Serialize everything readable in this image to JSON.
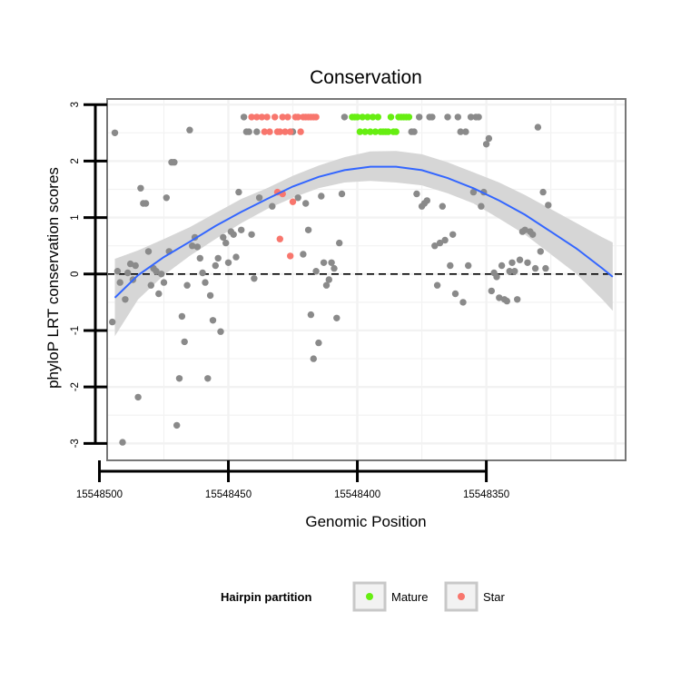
{
  "chart_data": {
    "type": "scatter",
    "title": "Conservation",
    "xlabel": "Genomic Position",
    "ylabel": "phyloP LRT conservation scores",
    "xlim": [
      15548497,
      15548296
    ],
    "ylim": [
      -3.3,
      3.1
    ],
    "x_reversed": true,
    "x_ticks": [
      15548500,
      15548450,
      15548400,
      15548350
    ],
    "x_tick_labels": [
      "15548500",
      "15548450",
      "15548400",
      "15548350"
    ],
    "y_ticks": [
      -3,
      -2,
      -1,
      0,
      1,
      2,
      3
    ],
    "y_tick_labels": [
      "-3",
      "-2",
      "-1",
      "0",
      "1",
      "2",
      "3"
    ],
    "reference_line": {
      "y": 0,
      "style": "dashed",
      "color": "#000000"
    },
    "grid": true,
    "legend": {
      "title": "Hairpin partition",
      "position": "bottom",
      "entries": [
        {
          "label": "Mature",
          "color": "#66ee11"
        },
        {
          "label": "Star",
          "color": "#f8766d"
        }
      ]
    },
    "colors": {
      "other": "#8a8a8a",
      "Mature": "#66ee11",
      "Star": "#f8766d",
      "smooth_line": "#3366ff",
      "ribbon": "#d4d4d4"
    },
    "smooth": {
      "x": [
        15548494,
        15548485,
        15548475,
        15548465,
        15548455,
        15548445,
        15548435,
        15548425,
        15548415,
        15548405,
        15548395,
        15548385,
        15548375,
        15548365,
        15548355,
        15548345,
        15548335,
        15548325,
        15548315,
        15548305,
        15548301
      ],
      "y": [
        -0.42,
        -0.02,
        0.3,
        0.57,
        0.85,
        1.1,
        1.33,
        1.55,
        1.72,
        1.84,
        1.9,
        1.9,
        1.84,
        1.7,
        1.52,
        1.3,
        1.05,
        0.75,
        0.45,
        0.1,
        -0.05
      ],
      "lower": [
        -1.1,
        -0.45,
        -0.02,
        0.32,
        0.62,
        0.9,
        1.15,
        1.35,
        1.52,
        1.62,
        1.65,
        1.62,
        1.57,
        1.43,
        1.25,
        0.98,
        0.7,
        0.35,
        0.0,
        -0.45,
        -0.65
      ],
      "upper": [
        0.27,
        0.42,
        0.62,
        0.83,
        1.08,
        1.33,
        1.52,
        1.74,
        1.92,
        2.07,
        2.17,
        2.18,
        2.12,
        1.98,
        1.8,
        1.62,
        1.4,
        1.15,
        0.9,
        0.65,
        0.56
      ]
    },
    "series": [
      {
        "name": "Other",
        "points": [
          [
            15548494,
            2.5
          ],
          [
            15548495,
            -0.85
          ],
          [
            15548493,
            0.05
          ],
          [
            15548492,
            -0.15
          ],
          [
            15548491,
            -2.98
          ],
          [
            15548490,
            -0.45
          ],
          [
            15548489,
            0.02
          ],
          [
            15548488,
            0.18
          ],
          [
            15548487,
            -0.1
          ],
          [
            15548486,
            0.15
          ],
          [
            15548485,
            -2.18
          ],
          [
            15548484,
            1.52
          ],
          [
            15548483,
            1.25
          ],
          [
            15548482,
            1.25
          ],
          [
            15548481,
            0.4
          ],
          [
            15548480,
            -0.2
          ],
          [
            15548479,
            0.1
          ],
          [
            15548478,
            0.05
          ],
          [
            15548477,
            -0.35
          ],
          [
            15548476,
            0.0
          ],
          [
            15548475,
            -0.15
          ],
          [
            15548474,
            1.35
          ],
          [
            15548473,
            0.4
          ],
          [
            15548472,
            1.98
          ],
          [
            15548471,
            1.98
          ],
          [
            15548470,
            -2.68
          ],
          [
            15548469,
            -1.85
          ],
          [
            15548468,
            -0.75
          ],
          [
            15548467,
            -1.2
          ],
          [
            15548466,
            -0.2
          ],
          [
            15548465,
            2.55
          ],
          [
            15548464,
            0.5
          ],
          [
            15548463,
            0.65
          ],
          [
            15548462,
            0.48
          ],
          [
            15548461,
            0.28
          ],
          [
            15548460,
            0.02
          ],
          [
            15548459,
            -0.15
          ],
          [
            15548458,
            -1.85
          ],
          [
            15548457,
            -0.38
          ],
          [
            15548456,
            -0.82
          ],
          [
            15548455,
            0.15
          ],
          [
            15548454,
            0.28
          ],
          [
            15548453,
            -1.02
          ],
          [
            15548452,
            0.65
          ],
          [
            15548451,
            0.55
          ],
          [
            15548450,
            0.2
          ],
          [
            15548449,
            0.75
          ],
          [
            15548448,
            0.7
          ],
          [
            15548447,
            0.3
          ],
          [
            15548446,
            1.45
          ],
          [
            15548445,
            0.78
          ],
          [
            15548444,
            2.78
          ],
          [
            15548443,
            2.52
          ],
          [
            15548442,
            2.52
          ],
          [
            15548441,
            0.7
          ],
          [
            15548440,
            -0.08
          ],
          [
            15548439,
            2.52
          ],
          [
            15548438,
            1.35
          ],
          [
            15548433,
            1.2
          ],
          [
            15548425,
            2.52
          ],
          [
            15548423,
            1.35
          ],
          [
            15548421,
            0.35
          ],
          [
            15548420,
            1.25
          ],
          [
            15548419,
            0.78
          ],
          [
            15548418,
            -0.72
          ],
          [
            15548417,
            -1.5
          ],
          [
            15548416,
            0.05
          ],
          [
            15548415,
            -1.22
          ],
          [
            15548414,
            1.38
          ],
          [
            15548413,
            0.2
          ],
          [
            15548412,
            -0.2
          ],
          [
            15548411,
            -0.1
          ],
          [
            15548410,
            0.2
          ],
          [
            15548409,
            0.1
          ],
          [
            15548408,
            -0.78
          ],
          [
            15548407,
            0.55
          ],
          [
            15548406,
            1.42
          ],
          [
            15548405,
            2.78
          ],
          [
            15548379,
            2.52
          ],
          [
            15548378,
            2.52
          ],
          [
            15548377,
            1.42
          ],
          [
            15548376,
            2.78
          ],
          [
            15548375,
            1.2
          ],
          [
            15548374,
            1.25
          ],
          [
            15548373,
            1.3
          ],
          [
            15548372,
            2.78
          ],
          [
            15548371,
            2.78
          ],
          [
            15548370,
            0.5
          ],
          [
            15548369,
            -0.2
          ],
          [
            15548368,
            0.55
          ],
          [
            15548367,
            1.2
          ],
          [
            15548366,
            0.6
          ],
          [
            15548365,
            2.78
          ],
          [
            15548364,
            0.15
          ],
          [
            15548363,
            0.7
          ],
          [
            15548362,
            -0.35
          ],
          [
            15548361,
            2.78
          ],
          [
            15548360,
            2.52
          ],
          [
            15548359,
            -0.5
          ],
          [
            15548358,
            2.52
          ],
          [
            15548357,
            0.15
          ],
          [
            15548356,
            2.78
          ],
          [
            15548355,
            1.45
          ],
          [
            15548354,
            2.78
          ],
          [
            15548353,
            2.78
          ],
          [
            15548352,
            1.2
          ],
          [
            15548351,
            1.45
          ],
          [
            15548350,
            2.3
          ],
          [
            15548349,
            2.4
          ],
          [
            15548348,
            -0.3
          ],
          [
            15548347,
            0.02
          ],
          [
            15548346,
            -0.05
          ],
          [
            15548345,
            -0.42
          ],
          [
            15548344,
            0.15
          ],
          [
            15548343,
            -0.45
          ],
          [
            15548342,
            -0.48
          ],
          [
            15548341,
            0.05
          ],
          [
            15548340,
            0.2
          ],
          [
            15548339,
            0.05
          ],
          [
            15548338,
            -0.45
          ],
          [
            15548337,
            0.25
          ],
          [
            15548336,
            0.75
          ],
          [
            15548335,
            0.78
          ],
          [
            15548334,
            0.2
          ],
          [
            15548333,
            0.75
          ],
          [
            15548332,
            0.7
          ],
          [
            15548331,
            0.1
          ],
          [
            15548330,
            2.6
          ],
          [
            15548329,
            0.4
          ],
          [
            15548328,
            1.45
          ],
          [
            15548327,
            0.1
          ],
          [
            15548326,
            1.22
          ]
        ]
      },
      {
        "name": "Mature",
        "points": [
          [
            15548402,
            2.78
          ],
          [
            15548401,
            2.78
          ],
          [
            15548400,
            2.78
          ],
          [
            15548399,
            2.52
          ],
          [
            15548398,
            2.78
          ],
          [
            15548397,
            2.52
          ],
          [
            15548396,
            2.78
          ],
          [
            15548395,
            2.52
          ],
          [
            15548394,
            2.78
          ],
          [
            15548393,
            2.52
          ],
          [
            15548392,
            2.78
          ],
          [
            15548391,
            2.52
          ],
          [
            15548390,
            2.52
          ],
          [
            15548389,
            2.52
          ],
          [
            15548388,
            2.52
          ],
          [
            15548387,
            2.78
          ],
          [
            15548386,
            2.52
          ],
          [
            15548385,
            2.52
          ],
          [
            15548384,
            2.78
          ],
          [
            15548383,
            2.78
          ],
          [
            15548382,
            2.78
          ],
          [
            15548381,
            2.78
          ],
          [
            15548380,
            2.78
          ]
        ]
      },
      {
        "name": "Star",
        "points": [
          [
            15548441,
            2.78
          ],
          [
            15548439,
            2.78
          ],
          [
            15548437,
            2.78
          ],
          [
            15548436,
            2.52
          ],
          [
            15548435,
            2.78
          ],
          [
            15548434,
            2.52
          ],
          [
            15548432,
            2.78
          ],
          [
            15548431,
            2.52
          ],
          [
            15548430,
            2.52
          ],
          [
            15548429,
            2.78
          ],
          [
            15548428,
            2.52
          ],
          [
            15548427,
            2.78
          ],
          [
            15548426,
            2.52
          ],
          [
            15548424,
            2.78
          ],
          [
            15548423,
            2.78
          ],
          [
            15548422,
            2.52
          ],
          [
            15548421,
            2.78
          ],
          [
            15548420,
            2.78
          ],
          [
            15548419,
            2.78
          ],
          [
            15548418,
            2.78
          ],
          [
            15548417,
            2.78
          ],
          [
            15548416,
            2.78
          ],
          [
            15548431,
            1.45
          ],
          [
            15548430,
            0.62
          ],
          [
            15548429,
            1.42
          ],
          [
            15548426,
            0.32
          ],
          [
            15548425,
            1.28
          ]
        ]
      }
    ]
  }
}
